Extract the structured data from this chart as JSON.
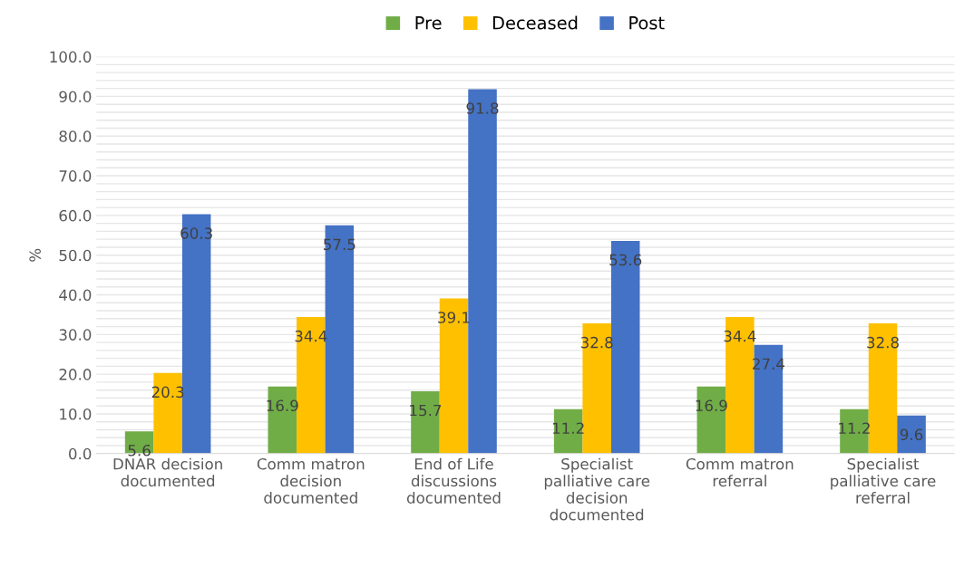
{
  "chart_data": {
    "type": "bar",
    "ylabel": "%",
    "categories": [
      "DNAR decision\ndocumented",
      "Comm matron\ndecision\ndocumented",
      "End of Life\ndiscussions\ndocumented",
      "Specialist\npalliative care\ndecision\ndocumented",
      "Comm matron\nreferral",
      "Specialist\npalliative care\nreferral"
    ],
    "series": [
      {
        "name": "Pre",
        "color": "#70ad47",
        "values": [
          5.6,
          16.9,
          15.7,
          11.2,
          16.9,
          11.2
        ]
      },
      {
        "name": "Deceased",
        "color": "#ffc000",
        "values": [
          20.3,
          34.4,
          39.1,
          32.8,
          34.4,
          32.8
        ]
      },
      {
        "name": "Post",
        "color": "#4472c4",
        "values": [
          60.3,
          57.5,
          91.8,
          53.6,
          27.4,
          9.6
        ]
      }
    ],
    "ylim": [
      0,
      100
    ],
    "yticks": [
      {
        "value": 0,
        "label": "0.0"
      },
      {
        "value": 2,
        "label": null
      },
      {
        "value": 4,
        "label": null
      },
      {
        "value": 6,
        "label": null
      },
      {
        "value": 8,
        "label": null
      },
      {
        "value": 10,
        "label": "10.0"
      },
      {
        "value": 12,
        "label": null
      },
      {
        "value": 14,
        "label": null
      },
      {
        "value": 16,
        "label": null
      },
      {
        "value": 18,
        "label": null
      },
      {
        "value": 20,
        "label": "20.0"
      },
      {
        "value": 22,
        "label": null
      },
      {
        "value": 24,
        "label": null
      },
      {
        "value": 26,
        "label": null
      },
      {
        "value": 28,
        "label": null
      },
      {
        "value": 30,
        "label": "30.0"
      },
      {
        "value": 32,
        "label": null
      },
      {
        "value": 34,
        "label": null
      },
      {
        "value": 36,
        "label": null
      },
      {
        "value": 38,
        "label": null
      },
      {
        "value": 40,
        "label": "40.0"
      },
      {
        "value": 42,
        "label": null
      },
      {
        "value": 44,
        "label": null
      },
      {
        "value": 46,
        "label": null
      },
      {
        "value": 48,
        "label": null
      },
      {
        "value": 50,
        "label": "50.0"
      },
      {
        "value": 52,
        "label": null
      },
      {
        "value": 54,
        "label": null
      },
      {
        "value": 56,
        "label": null
      },
      {
        "value": 58,
        "label": null
      },
      {
        "value": 60,
        "label": "60.0"
      },
      {
        "value": 62,
        "label": null
      },
      {
        "value": 64,
        "label": null
      },
      {
        "value": 66,
        "label": null
      },
      {
        "value": 68,
        "label": null
      },
      {
        "value": 70,
        "label": "70.0"
      },
      {
        "value": 72,
        "label": null
      },
      {
        "value": 74,
        "label": null
      },
      {
        "value": 76,
        "label": null
      },
      {
        "value": 78,
        "label": null
      },
      {
        "value": 80,
        "label": "80.0"
      },
      {
        "value": 82,
        "label": null
      },
      {
        "value": 84,
        "label": null
      },
      {
        "value": 86,
        "label": null
      },
      {
        "value": 88,
        "label": null
      },
      {
        "value": 90,
        "label": "90.0"
      },
      {
        "value": 92,
        "label": null
      },
      {
        "value": 94,
        "label": null
      },
      {
        "value": 96,
        "label": null
      },
      {
        "value": 98,
        "label": null
      },
      {
        "value": 100,
        "label": "100.0"
      }
    ],
    "grid": "y",
    "legend": "top",
    "data_labels": true
  }
}
